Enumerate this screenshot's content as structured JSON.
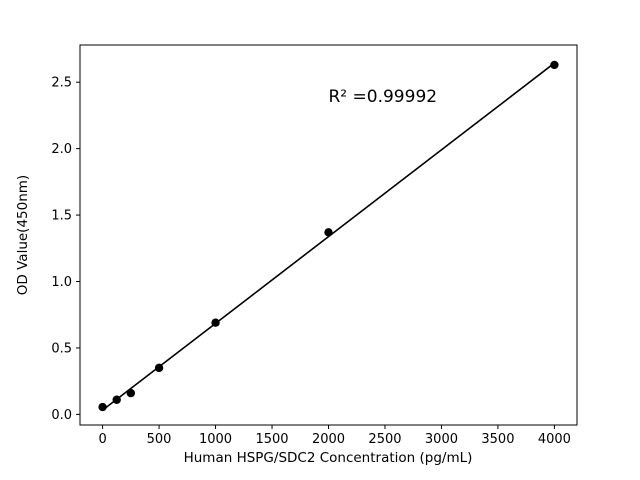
{
  "chart_data": {
    "type": "scatter",
    "title": "",
    "xlabel": "Human HSPG/SDC2 Concentration (pg/mL)",
    "ylabel": "OD Value(450nm)",
    "x": [
      0,
      125,
      250,
      500,
      1000,
      2000,
      4000
    ],
    "y": [
      0.055,
      0.11,
      0.16,
      0.35,
      0.69,
      1.37,
      2.63
    ],
    "fit_line": true,
    "xlim": [
      -200,
      4200
    ],
    "ylim": [
      -0.08,
      2.78
    ],
    "xticks": [
      0,
      500,
      1000,
      1500,
      2000,
      2500,
      3000,
      3500,
      4000
    ],
    "xtick_labels": [
      "0",
      "500",
      "1000",
      "1500",
      "2000",
      "2500",
      "3000",
      "3500",
      "4000"
    ],
    "yticks": [
      0.0,
      0.5,
      1.0,
      1.5,
      2.0,
      2.5
    ],
    "ytick_labels": [
      "0.0",
      "0.5",
      "1.0",
      "1.5",
      "2.0",
      "2.5"
    ],
    "annotation": {
      "text": "R² =0.99992",
      "x": 2000,
      "y": 2.35
    },
    "marker_color": "#000000",
    "line_color": "#000000",
    "axis_color": "#000000",
    "background": "#ffffff",
    "grid": false,
    "legend": false
  }
}
